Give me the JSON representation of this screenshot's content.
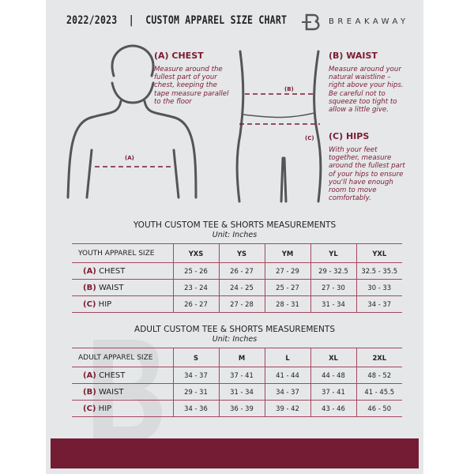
{
  "header": {
    "title": "2022/2023  |  CUSTOM APPAREL SIZE CHART",
    "brand": "BREAKAWAY",
    "logo_letter": "B"
  },
  "colors": {
    "accent": "#731c33",
    "background": "#e6e7e9"
  },
  "chest": {
    "heading": "(A) CHEST",
    "text": "Measure around the fullest part of your chest, keeping the tape measure parallel to the floor",
    "marker": "(A)"
  },
  "waist": {
    "heading": "(B) WAIST",
    "text": "Measure around your natural waistline – right above your hips. Be careful not to squeeze too tight to allow a little give.",
    "marker": "(B)"
  },
  "hips": {
    "heading": "(C) HIPS",
    "text": "With your feet together, measure around the fullest part of your hips to ensure you'll have enough room to move comfortably.",
    "marker": "(C)"
  },
  "youth": {
    "title": "YOUTH CUSTOM TEE & SHORTS MEASUREMENTS",
    "unit": "Unit: Inches",
    "header": "YOUTH APPAREL SIZE",
    "sizes": [
      "YXS",
      "YS",
      "YM",
      "YL",
      "YXL"
    ],
    "rows": [
      {
        "code": "(A)",
        "label": "CHEST",
        "values": [
          "25 - 26",
          "26 - 27",
          "27 - 29",
          "29 - 32.5",
          "32.5 - 35.5"
        ]
      },
      {
        "code": "(B)",
        "label": "WAIST",
        "values": [
          "23 - 24",
          "24 - 25",
          "25 - 27",
          "27 - 30",
          "30 - 33"
        ]
      },
      {
        "code": "(C)",
        "label": "HIP",
        "values": [
          "26 - 27",
          "27 - 28",
          "28 - 31",
          "31 - 34",
          "34 - 37"
        ]
      }
    ]
  },
  "adult": {
    "title": "ADULT CUSTOM TEE & SHORTS MEASUREMENTS",
    "unit": "Unit: Inches",
    "header": "ADULT APPAREL SIZE",
    "sizes": [
      "S",
      "M",
      "L",
      "XL",
      "2XL"
    ],
    "rows": [
      {
        "code": "(A)",
        "label": "CHEST",
        "values": [
          "34 - 37",
          "37 - 41",
          "41 - 44",
          "44 - 48",
          "48 - 52"
        ]
      },
      {
        "code": "(B)",
        "label": "WAIST",
        "values": [
          "29 - 31",
          "31 - 34",
          "34 - 37",
          "37 - 41",
          "41 - 45.5"
        ]
      },
      {
        "code": "(C)",
        "label": "HIP",
        "values": [
          "34 - 36",
          "36 - 39",
          "39 - 42",
          "43 - 46",
          "46 - 50"
        ]
      }
    ]
  }
}
